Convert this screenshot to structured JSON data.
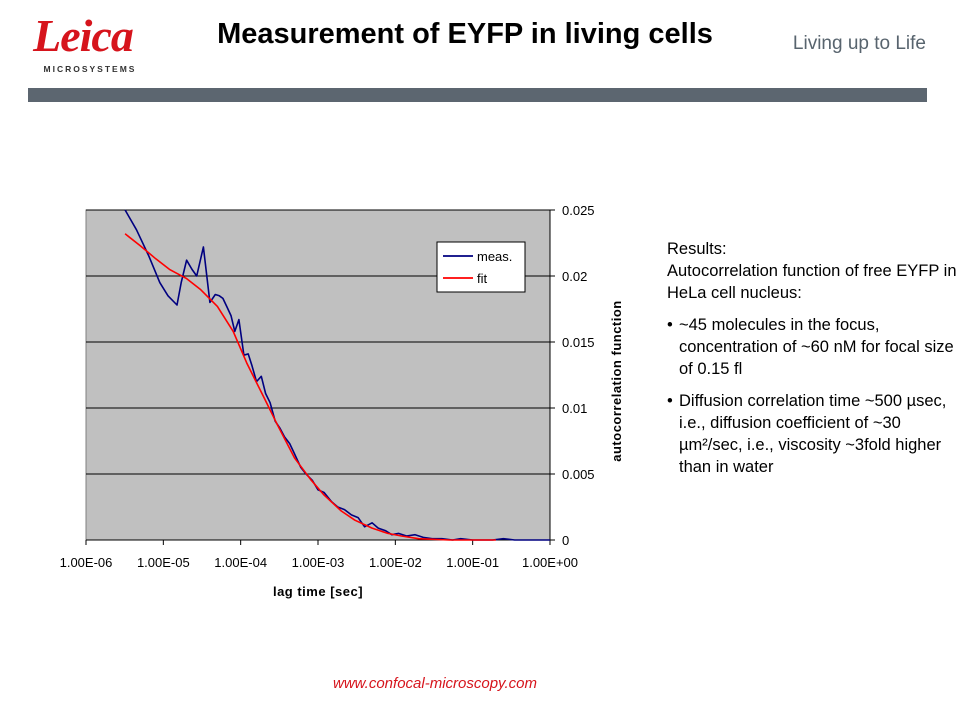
{
  "header": {
    "logo_word": "Leica",
    "logo_sub": "MICROSYSTEMS",
    "title": "Measurement of EYFP in living cells",
    "tagline": "Living up to Life"
  },
  "results": {
    "heading_1": "Results:",
    "heading_2": "Autocorrelation function of free EYFP in HeLa cell nucleus:",
    "bullets": [
      "~45 molecules in the focus, concentration of ~60 nM for focal size of 0.15 fl",
      "Diffusion correlation time ~500 µsec, i.e., diffusion coefficient of ~30 µm²/sec, i.e., viscosity ~3fold higher than in water"
    ]
  },
  "footer": {
    "url": "www.confocal-microscopy.com"
  },
  "colors": {
    "brand_red": "#d6141c",
    "bar_gray": "#5c6670",
    "plot_bg": "#c0c0c0",
    "meas_line": "#000080",
    "fit_line": "#ff0000"
  },
  "chart_data": {
    "type": "line",
    "title": "",
    "xlabel": "lag time [sec]",
    "ylabel": "autocorrelation function",
    "x_scale": "log",
    "xlim": [
      1e-06,
      1
    ],
    "ylim": [
      0,
      0.025
    ],
    "x_tick_labels": [
      "1.00E-06",
      "1.00E-05",
      "1.00E-04",
      "1.00E-03",
      "1.00E-02",
      "1.00E-01",
      "1.00E+00"
    ],
    "y_tick_labels": [
      "0",
      "0.005",
      "0.01",
      "0.015",
      "0.02",
      "0.025"
    ],
    "y_tick_values": [
      0,
      0.005,
      0.01,
      0.015,
      0.02,
      0.025
    ],
    "grid": "horizontal",
    "legend_position": "top-right",
    "series": [
      {
        "name": "meas.",
        "color": "#000080",
        "x": [
          3.2e-06,
          4.5e-06,
          6.5e-06,
          9e-06,
          1.15e-05,
          1.5e-05,
          1.7e-05,
          2e-05,
          2.35e-05,
          2.7e-05,
          3.3e-05,
          4e-05,
          4.7e-05,
          5.3e-05,
          5.9e-05,
          6.6e-05,
          7.5e-05,
          8.4e-05,
          9.5e-05,
          0.00011,
          0.000125,
          0.00014,
          0.00016,
          0.000185,
          0.00021,
          0.00024,
          0.00028,
          0.00032,
          0.00037,
          0.00043,
          0.0005,
          0.0006,
          0.0007,
          0.00085,
          0.001,
          0.0012,
          0.0015,
          0.0018,
          0.0022,
          0.0027,
          0.0033,
          0.004,
          0.005,
          0.006,
          0.0075,
          0.009,
          0.011,
          0.014,
          0.018,
          0.023,
          0.03,
          0.04,
          0.055,
          0.07,
          0.1,
          0.13,
          0.18,
          0.25,
          0.35,
          0.5,
          0.7,
          1.0
        ],
        "y": [
          0.025,
          0.0235,
          0.0215,
          0.0195,
          0.0185,
          0.0178,
          0.0195,
          0.0212,
          0.0205,
          0.02,
          0.0222,
          0.018,
          0.0186,
          0.0185,
          0.0183,
          0.0177,
          0.017,
          0.0158,
          0.0167,
          0.014,
          0.0141,
          0.0132,
          0.012,
          0.0124,
          0.0111,
          0.0104,
          0.009,
          0.0085,
          0.0078,
          0.0073,
          0.0065,
          0.0055,
          0.005,
          0.0045,
          0.0038,
          0.0036,
          0.0029,
          0.0025,
          0.0023,
          0.0019,
          0.0017,
          0.001,
          0.0013,
          0.0009,
          0.0007,
          0.0004,
          0.0005,
          0.0003,
          0.0004,
          0.0002,
          0.0001,
          0.0001,
          0.0,
          0.0001,
          0.0,
          0.0,
          0.0,
          0.0001,
          0.0,
          0.0,
          0.0,
          0.0
        ]
      },
      {
        "name": "fit",
        "color": "#ff0000",
        "x": [
          3.2e-06,
          5e-06,
          8e-06,
          1.2e-05,
          2e-05,
          3e-05,
          5e-05,
          8e-05,
          0.00012,
          0.0002,
          0.0003,
          0.0005,
          0.0008,
          0.0012,
          0.002,
          0.003,
          0.005,
          0.008,
          0.012,
          0.02,
          0.05,
          0.1,
          0.2
        ],
        "y": [
          0.0232,
          0.0223,
          0.0213,
          0.0205,
          0.0198,
          0.019,
          0.0177,
          0.0158,
          0.0134,
          0.0108,
          0.0087,
          0.0062,
          0.0046,
          0.0034,
          0.0022,
          0.0015,
          0.0009,
          0.0005,
          0.0003,
          0.0001,
          0.0,
          0.0,
          0.0
        ]
      }
    ]
  }
}
